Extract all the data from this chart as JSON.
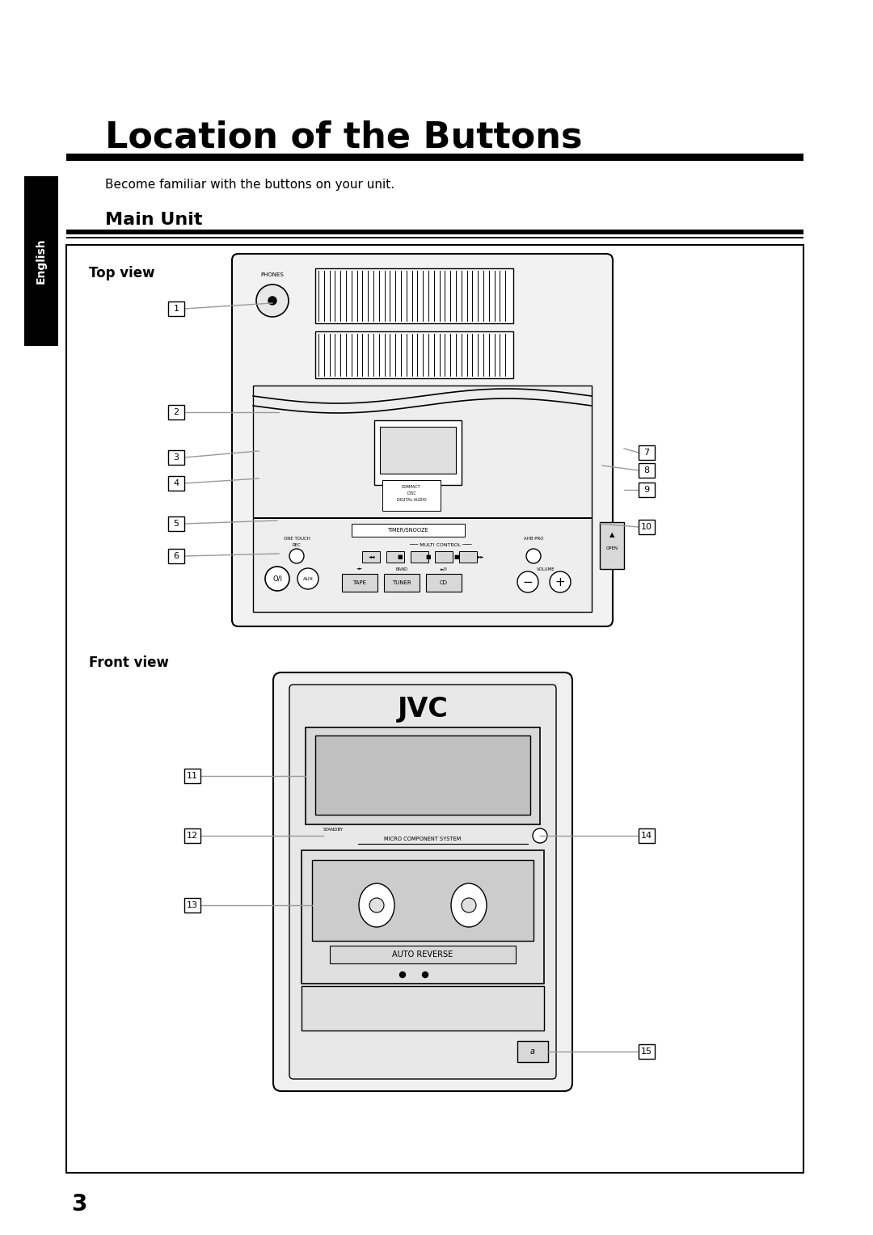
{
  "title": "Location of the Buttons",
  "subtitle": "Become familiar with the buttons on your unit.",
  "section": "Main Unit",
  "page_number": "3",
  "sidebar_text": "English",
  "bg_color": "#ffffff",
  "box_color": "#000000",
  "label_color": "#000000",
  "sidebar_bg": "#000000",
  "sidebar_text_color": "#ffffff"
}
